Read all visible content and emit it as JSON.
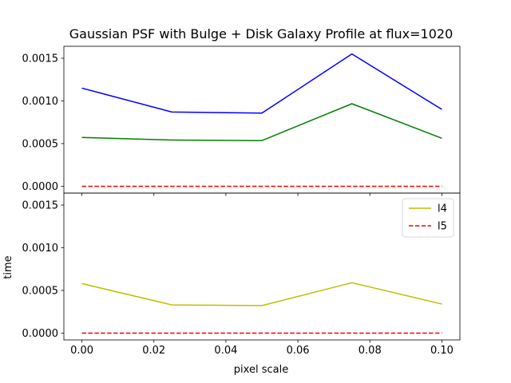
{
  "chart_data": {
    "type": "line",
    "title": "Gaussian PSF with Bulge + Disk Galaxy Profile at flux=1020",
    "xlabel": "pixel scale",
    "ylabel": "time",
    "x": [
      0.0,
      0.025,
      0.05,
      0.075,
      0.1
    ],
    "xlim": [
      -0.005,
      0.105
    ],
    "x_ticks": [
      0.0,
      0.02,
      0.04,
      0.06,
      0.08,
      0.1
    ],
    "x_tick_labels": [
      "0.00",
      "0.02",
      "0.04",
      "0.06",
      "0.08",
      "0.10"
    ],
    "grid": false,
    "panels": [
      {
        "ylim": [
          -8e-05,
          0.00164
        ],
        "y_ticks": [
          0,
          0.0005,
          0.001,
          0.0015
        ],
        "y_tick_labels": [
          "0.0000",
          "0.0005",
          "0.0010",
          "0.0015"
        ],
        "legend": "none",
        "series": [
          {
            "color": "#0000ff",
            "style": "solid",
            "values": [
              0.00115,
              0.00087,
              0.000857,
              0.00155,
              0.0009
            ]
          },
          {
            "color": "#008000",
            "style": "solid",
            "values": [
              0.000572,
              0.000542,
              0.000535,
              0.000967,
              0.000562
            ]
          },
          {
            "color": "#ff0000",
            "style": "dashed",
            "values": [
              0,
              0,
              0,
              0,
              0
            ]
          }
        ]
      },
      {
        "ylim": [
          -8e-05,
          0.00164
        ],
        "y_ticks": [
          0,
          0.0005,
          0.001,
          0.0015
        ],
        "y_tick_labels": [
          "0.0000",
          "0.0005",
          "0.0010",
          "0.0015"
        ],
        "legend": "top-right",
        "series": [
          {
            "name": "l4",
            "color": "#bfbf00",
            "style": "solid",
            "values": [
              0.00058,
              0.00033,
              0.000322,
              0.00059,
              0.00034
            ]
          },
          {
            "name": "l5",
            "color": "#ff0000",
            "style": "dashed",
            "values": [
              0,
              0,
              0,
              0,
              0
            ]
          }
        ]
      }
    ]
  }
}
